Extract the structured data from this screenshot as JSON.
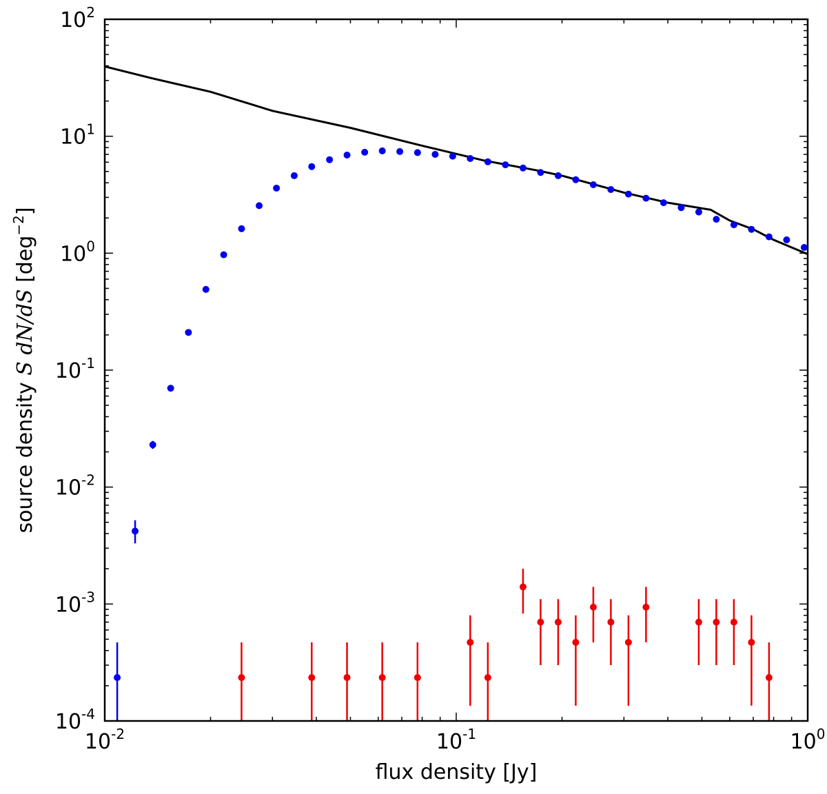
{
  "chart_data": {
    "type": "scatter",
    "title": "",
    "xlabel": "flux density [Jy]",
    "ylabel": {
      "prefix": "source density ",
      "math": "S dN/dS",
      "unit_open": " [deg",
      "unit_sup": "−2",
      "unit_close": "]"
    },
    "xscale": "log",
    "yscale": "log",
    "xlim": [
      0.01,
      1
    ],
    "ylim": [
      0.0001,
      100
    ],
    "x_ticks": [
      {
        "value": 0.01,
        "base": "10",
        "exp": "-2"
      },
      {
        "value": 0.1,
        "base": "10",
        "exp": "-1"
      },
      {
        "value": 1,
        "base": "10",
        "exp": "0"
      }
    ],
    "y_ticks": [
      {
        "value": 0.0001,
        "base": "10",
        "exp": "-4"
      },
      {
        "value": 0.001,
        "base": "10",
        "exp": "-3"
      },
      {
        "value": 0.01,
        "base": "10",
        "exp": "-2"
      },
      {
        "value": 0.1,
        "base": "10",
        "exp": "-1"
      },
      {
        "value": 1,
        "base": "10",
        "exp": "0"
      },
      {
        "value": 10,
        "base": "10",
        "exp": "1"
      },
      {
        "value": 100,
        "base": "10",
        "exp": "2"
      }
    ],
    "grid": false,
    "legend": "none",
    "series": [
      {
        "color": "#000000",
        "style": "line",
        "x": [
          0.01,
          0.0135,
          0.02,
          0.03,
          0.05,
          0.08,
          0.12,
          0.17,
          0.2,
          0.3,
          0.4,
          0.53,
          0.6,
          0.7,
          0.8,
          1.0
        ],
        "y": [
          39.5,
          31.5,
          24.0,
          16.5,
          11.8,
          8.3,
          6.2,
          5.1,
          4.6,
          3.3,
          2.7,
          2.35,
          1.9,
          1.6,
          1.3,
          0.98
        ]
      },
      {
        "color": "#0000ee",
        "style": "points",
        "points": [
          {
            "x": 0.01085,
            "y": 0.000235,
            "lo": 0.0001,
            "hi": 0.00047
          },
          {
            "x": 0.0122,
            "y": 0.0042,
            "lo": 0.0033,
            "hi": 0.0052
          },
          {
            "x": 0.0137,
            "y": 0.023,
            "lo": 0.0212,
            "hi": 0.0248
          },
          {
            "x": 0.0154,
            "y": 0.07
          },
          {
            "x": 0.0173,
            "y": 0.21
          },
          {
            "x": 0.0194,
            "y": 0.49
          },
          {
            "x": 0.0218,
            "y": 0.97
          },
          {
            "x": 0.0245,
            "y": 1.62
          },
          {
            "x": 0.0275,
            "y": 2.55
          },
          {
            "x": 0.0308,
            "y": 3.6
          },
          {
            "x": 0.0346,
            "y": 4.6
          },
          {
            "x": 0.0388,
            "y": 5.5
          },
          {
            "x": 0.0436,
            "y": 6.3
          },
          {
            "x": 0.0489,
            "y": 6.9
          },
          {
            "x": 0.0549,
            "y": 7.3
          },
          {
            "x": 0.0616,
            "y": 7.5
          },
          {
            "x": 0.0691,
            "y": 7.4
          },
          {
            "x": 0.0776,
            "y": 7.25
          },
          {
            "x": 0.0871,
            "y": 7.0
          },
          {
            "x": 0.0977,
            "y": 6.75
          },
          {
            "x": 0.1096,
            "y": 6.45
          },
          {
            "x": 0.123,
            "y": 6.05
          },
          {
            "x": 0.138,
            "y": 5.7
          },
          {
            "x": 0.1549,
            "y": 5.35
          },
          {
            "x": 0.1738,
            "y": 4.9
          },
          {
            "x": 0.195,
            "y": 4.6
          },
          {
            "x": 0.2188,
            "y": 4.25
          },
          {
            "x": 0.2455,
            "y": 3.85
          },
          {
            "x": 0.2754,
            "y": 3.5
          },
          {
            "x": 0.309,
            "y": 3.2
          },
          {
            "x": 0.3467,
            "y": 2.95
          },
          {
            "x": 0.389,
            "y": 2.7
          },
          {
            "x": 0.4365,
            "y": 2.45
          },
          {
            "x": 0.4898,
            "y": 2.25
          },
          {
            "x": 0.5495,
            "y": 1.95
          },
          {
            "x": 0.6166,
            "y": 1.75
          },
          {
            "x": 0.6918,
            "y": 1.6
          },
          {
            "x": 0.7762,
            "y": 1.38
          },
          {
            "x": 0.871,
            "y": 1.3
          },
          {
            "x": 0.9772,
            "y": 1.12
          }
        ]
      },
      {
        "color": "#ee0000",
        "style": "points",
        "points": [
          {
            "x": 0.0245,
            "y": 0.000235,
            "lo": 0.0001,
            "hi": 0.00047
          },
          {
            "x": 0.0388,
            "y": 0.000235,
            "lo": 0.0001,
            "hi": 0.00047
          },
          {
            "x": 0.0489,
            "y": 0.000235,
            "lo": 0.0001,
            "hi": 0.00047
          },
          {
            "x": 0.0616,
            "y": 0.000235,
            "lo": 0.0001,
            "hi": 0.00047
          },
          {
            "x": 0.0776,
            "y": 0.000235,
            "lo": 0.0001,
            "hi": 0.00047
          },
          {
            "x": 0.1096,
            "y": 0.00047,
            "lo": 0.000135,
            "hi": 0.0008
          },
          {
            "x": 0.123,
            "y": 0.000235,
            "lo": 0.0001,
            "hi": 0.00047
          },
          {
            "x": 0.1549,
            "y": 0.0014,
            "lo": 0.00083,
            "hi": 0.002
          },
          {
            "x": 0.1738,
            "y": 0.0007,
            "lo": 0.0003,
            "hi": 0.0011
          },
          {
            "x": 0.195,
            "y": 0.0007,
            "lo": 0.0003,
            "hi": 0.0011
          },
          {
            "x": 0.2188,
            "y": 0.00047,
            "lo": 0.000135,
            "hi": 0.0008
          },
          {
            "x": 0.2455,
            "y": 0.00094,
            "lo": 0.00047,
            "hi": 0.0014
          },
          {
            "x": 0.2754,
            "y": 0.0007,
            "lo": 0.0003,
            "hi": 0.0011
          },
          {
            "x": 0.309,
            "y": 0.00047,
            "lo": 0.000135,
            "hi": 0.0008
          },
          {
            "x": 0.3467,
            "y": 0.00094,
            "lo": 0.00047,
            "hi": 0.0014
          },
          {
            "x": 0.4898,
            "y": 0.0007,
            "lo": 0.0003,
            "hi": 0.0011
          },
          {
            "x": 0.5495,
            "y": 0.0007,
            "lo": 0.0003,
            "hi": 0.0011
          },
          {
            "x": 0.6166,
            "y": 0.0007,
            "lo": 0.0003,
            "hi": 0.0011
          },
          {
            "x": 0.6918,
            "y": 0.00047,
            "lo": 0.000135,
            "hi": 0.0008
          },
          {
            "x": 0.7762,
            "y": 0.000235,
            "lo": 0.0001,
            "hi": 0.00047
          }
        ]
      }
    ]
  }
}
